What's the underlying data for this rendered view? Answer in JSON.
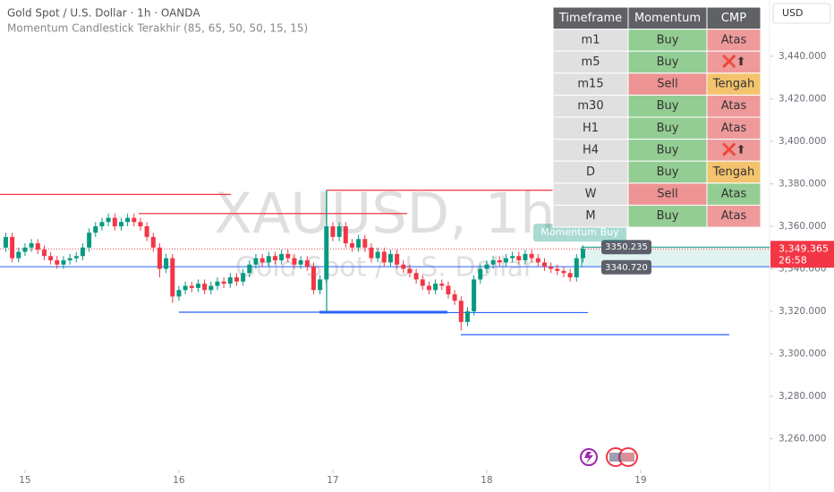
{
  "header": {
    "title": "Gold Spot / U.S. Dollar · 1h · OANDA",
    "indicator": "Momentum Candlestick Terakhir (85, 65, 50, 50, 15, 15)",
    "currency": "USD"
  },
  "watermark": {
    "symbol": "XAUUSD, 1h",
    "name": "Gold Spot / U.S. Dollar"
  },
  "table": {
    "columns": [
      "Timeframe",
      "Momentum",
      "CMP"
    ],
    "rows": [
      [
        "m1",
        "Buy",
        "Atas"
      ],
      [
        "m5",
        "Buy",
        "❌⬆"
      ],
      [
        "m15",
        "Sell",
        "Tengah"
      ],
      [
        "m30",
        "Buy",
        "Atas"
      ],
      [
        "H1",
        "Buy",
        "Atas"
      ],
      [
        "H4",
        "Buy",
        "❌⬆"
      ],
      [
        "D",
        "Buy",
        "Tengah"
      ],
      [
        "W",
        "Sell",
        "Atas"
      ],
      [
        "M",
        "Buy",
        "Atas"
      ]
    ],
    "header_color": "#5f6165",
    "colors": [
      [
        "#e0e0e0",
        "#93cd93",
        "#ee9a9a"
      ],
      [
        "#e0e0e0",
        "#93cd93",
        "#ee9a9a"
      ],
      [
        "#e0e0e0",
        "#ee9393",
        "#f3c36e"
      ],
      [
        "#e0e0e0",
        "#93cd93",
        "#ee9a9a"
      ],
      [
        "#e0e0e0",
        "#93cd93",
        "#ee9a9a"
      ],
      [
        "#e0e0e0",
        "#93cd93",
        "#ee9a9a"
      ],
      [
        "#e0e0e0",
        "#93cd93",
        "#f3c36e"
      ],
      [
        "#e0e0e0",
        "#ee9393",
        "#93cd93"
      ],
      [
        "#e0e0e0",
        "#93cd93",
        "#ee9a9a"
      ]
    ]
  },
  "chart_data": {
    "type": "candlestick",
    "x": [
      -3,
      -2,
      -1,
      0,
      1,
      2,
      3,
      4,
      5,
      6,
      7,
      8,
      9,
      10,
      11,
      12,
      13,
      14,
      15,
      16,
      17,
      18,
      19,
      20,
      21,
      22,
      23,
      24,
      25,
      26,
      27,
      28,
      29,
      30,
      31,
      32,
      33,
      34,
      35,
      36,
      37,
      38,
      39,
      40,
      41,
      42,
      43,
      44,
      45,
      46,
      47,
      48,
      49,
      50,
      51,
      52,
      53,
      54,
      55,
      56,
      57,
      58,
      59,
      60,
      61,
      62,
      63,
      64,
      65,
      66,
      67,
      68,
      69,
      70,
      71,
      72,
      73,
      74,
      75,
      76,
      77,
      78,
      79,
      80,
      81,
      82,
      83,
      84,
      85,
      86,
      87
    ],
    "open": [
      3350,
      3355,
      3345,
      3348,
      3350,
      3352,
      3349,
      3346,
      3344,
      3342,
      3344,
      3345,
      3346,
      3350,
      3357,
      3360,
      3362,
      3364,
      3360,
      3362,
      3364,
      3362,
      3360,
      3355,
      3350,
      3340,
      3345,
      3327,
      3330,
      3332,
      3331,
      3333,
      3330,
      3332,
      3334,
      3333,
      3336,
      3334,
      3338,
      3342,
      3345,
      3343,
      3346,
      3344,
      3347,
      3345,
      3342,
      3344,
      3341,
      3330,
      3335,
      3360,
      3355,
      3360,
      3352,
      3350,
      3354,
      3350,
      3345,
      3348,
      3343,
      3347,
      3342,
      3340,
      3338,
      3335,
      3332,
      3330,
      3333,
      3332,
      3328,
      3325,
      3315,
      3320,
      3335,
      3340,
      3342,
      3344,
      3343,
      3345,
      3346,
      3344,
      3347,
      3345,
      3343,
      3341,
      3340,
      3339,
      3338,
      3336,
      3345
    ],
    "high": [
      3357,
      3357,
      3350,
      3352,
      3354,
      3354,
      3351,
      3348,
      3346,
      3346,
      3347,
      3348,
      3352,
      3359,
      3362,
      3364,
      3366,
      3366,
      3364,
      3366,
      3366,
      3364,
      3362,
      3357,
      3352,
      3347,
      3347,
      3332,
      3334,
      3334,
      3335,
      3335,
      3334,
      3336,
      3336,
      3338,
      3338,
      3340,
      3344,
      3347,
      3347,
      3348,
      3348,
      3349,
      3349,
      3347,
      3346,
      3346,
      3343,
      3337,
      3377,
      3362,
      3362,
      3362,
      3354,
      3356,
      3356,
      3352,
      3350,
      3350,
      3349,
      3349,
      3344,
      3342,
      3340,
      3337,
      3334,
      3335,
      3335,
      3334,
      3330,
      3327,
      3322,
      3337,
      3342,
      3344,
      3346,
      3346,
      3347,
      3348,
      3348,
      3349,
      3349,
      3347,
      3345,
      3343,
      3342,
      3341,
      3340,
      3347,
      3351
    ],
    "low": [
      3348,
      3343,
      3343,
      3346,
      3348,
      3347,
      3344,
      3342,
      3340,
      3340,
      3342,
      3343,
      3344,
      3348,
      3355,
      3358,
      3360,
      3358,
      3358,
      3360,
      3360,
      3358,
      3353,
      3348,
      3336,
      3338,
      3324,
      3325,
      3328,
      3329,
      3329,
      3328,
      3328,
      3330,
      3331,
      3331,
      3332,
      3332,
      3336,
      3340,
      3341,
      3341,
      3342,
      3342,
      3343,
      3340,
      3340,
      3339,
      3328,
      3328,
      3333,
      3353,
      3353,
      3350,
      3348,
      3348,
      3348,
      3343,
      3343,
      3341,
      3341,
      3340,
      3338,
      3336,
      3333,
      3330,
      3328,
      3328,
      3330,
      3326,
      3323,
      3311,
      3313,
      3318,
      3333,
      3338,
      3340,
      3341,
      3341,
      3343,
      3342,
      3342,
      3343,
      3341,
      3339,
      3338,
      3337,
      3336,
      3334,
      3334,
      3343
    ],
    "close": [
      3355,
      3345,
      3348,
      3350,
      3352,
      3349,
      3346,
      3344,
      3342,
      3344,
      3345,
      3346,
      3350,
      3357,
      3360,
      3362,
      3364,
      3360,
      3362,
      3364,
      3362,
      3360,
      3355,
      3350,
      3340,
      3345,
      3327,
      3330,
      3332,
      3331,
      3333,
      3330,
      3332,
      3334,
      3333,
      3336,
      3334,
      3338,
      3342,
      3345,
      3343,
      3346,
      3344,
      3347,
      3345,
      3342,
      3344,
      3341,
      3330,
      3335,
      3360,
      3355,
      3360,
      3352,
      3350,
      3354,
      3350,
      3345,
      3348,
      3343,
      3347,
      3342,
      3340,
      3338,
      3335,
      3332,
      3330,
      3333,
      3332,
      3328,
      3325,
      3315,
      3320,
      3335,
      3340,
      3342,
      3344,
      3343,
      3345,
      3346,
      3344,
      3347,
      3345,
      3343,
      3341,
      3340,
      3339,
      3338,
      3336,
      3345,
      3349.365
    ],
    "up_color": "#089981",
    "down_color": "#f23645",
    "xlim": [
      -3.9,
      116.1
    ],
    "xticks": [
      {
        "value": 0,
        "label": "15"
      },
      {
        "value": 24,
        "label": "16"
      },
      {
        "value": 48,
        "label": "17"
      },
      {
        "value": 72,
        "label": "18"
      },
      {
        "value": 96,
        "label": "19"
      }
    ],
    "ylim": [
      3245.5,
      3466.5
    ],
    "yticks": [
      {
        "value": 3260,
        "label": "3,260.000"
      },
      {
        "value": 3280,
        "label": "3,280.000"
      },
      {
        "value": 3300,
        "label": "3,300.000"
      },
      {
        "value": 3320,
        "label": "3,320.000"
      },
      {
        "value": 3340,
        "label": "3,340.000"
      },
      {
        "value": 3360,
        "label": "3,360.000"
      },
      {
        "value": 3380,
        "label": "3,380.000"
      },
      {
        "value": 3400,
        "label": "3,400.000"
      },
      {
        "value": 3420,
        "label": "3,420.000"
      },
      {
        "value": 3440,
        "label": "3,440.000"
      }
    ],
    "levels": [
      {
        "value": 3375,
        "color": "#f23645"
      },
      {
        "value": 3366,
        "color": "#f23645"
      },
      {
        "value": 3377,
        "color": "#f23645"
      },
      {
        "value": 3341,
        "color": "#2962ff"
      },
      {
        "value": 3319.6,
        "color": "#2962ff"
      },
      {
        "value": 3319.6,
        "color": "#2962ff"
      },
      {
        "value": 3319.4,
        "color": "#2962ff"
      },
      {
        "value": 3309,
        "color": "#2962ff"
      }
    ],
    "zone_top": 3350.235,
    "zone_bottom": {
      "value": 3340.72,
      "label": "3340.720"
    },
    "last_price": {
      "value": 3349.365,
      "label": "3,349.365"
    },
    "countdown": "26:58",
    "signal": "Momentum Buy"
  }
}
